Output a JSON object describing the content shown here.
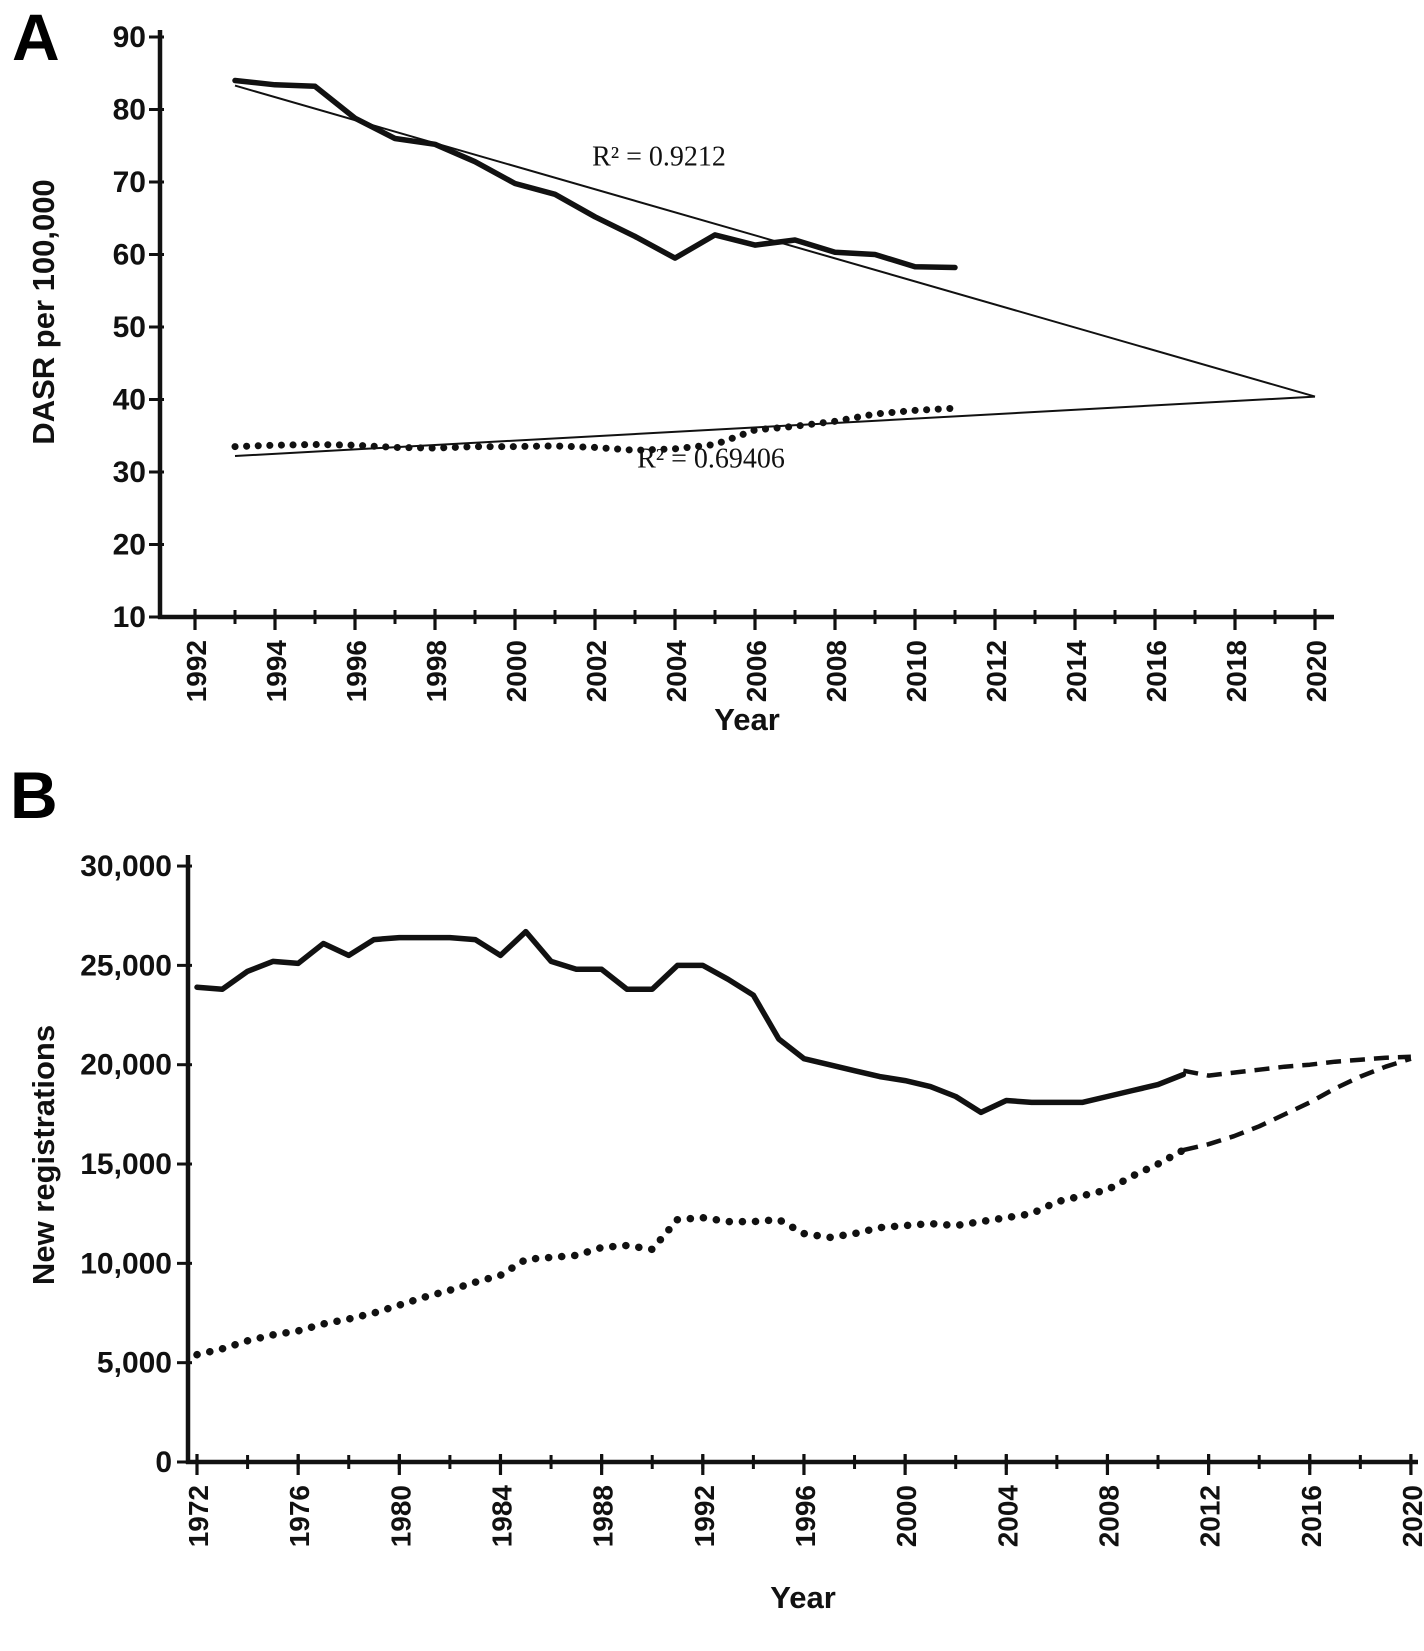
{
  "figure": {
    "background": "#ffffff",
    "ink": "#111111"
  },
  "panels": [
    {
      "letter": "A"
    },
    {
      "letter": "B"
    }
  ],
  "chart_data": [
    {
      "panel": "A",
      "type": "line",
      "title": "",
      "xlabel": "Year",
      "ylabel": "DASR per 100,000",
      "xlim": [
        1992,
        2020
      ],
      "ylim": [
        10,
        90
      ],
      "grid": false,
      "legend": null,
      "xticks": {
        "labeled": [
          1992,
          1994,
          1996,
          1998,
          2000,
          2002,
          2004,
          2006,
          2008,
          2010,
          2012,
          2014,
          2016,
          2018,
          2020
        ],
        "minor_step": 1
      },
      "yticks": {
        "values": [
          10,
          20,
          30,
          40,
          50,
          60,
          70,
          80,
          90
        ],
        "labels": [
          "10",
          "20",
          "30",
          "40",
          "50",
          "60",
          "70",
          "80",
          "90"
        ]
      },
      "series": [
        {
          "name": "solid-series-observed",
          "style": "solid-thick",
          "x_first": 1993,
          "x_step": 1,
          "y": [
            84,
            83.4,
            83.2,
            78.8,
            76.0,
            75.2,
            72.8,
            69.8,
            68.3,
            65.2,
            62.5,
            59.5,
            62.7,
            61.3,
            62.0,
            60.3,
            60.0,
            58.3,
            58.2
          ]
        },
        {
          "name": "solid-series-trendline",
          "style": "solid-thin",
          "x": [
            1993,
            2020
          ],
          "y": [
            83.3,
            40.4
          ]
        },
        {
          "name": "dotted-series-observed",
          "style": "dotted",
          "x_first": 1993,
          "x_step": 1,
          "y": [
            33.5,
            33.7,
            33.8,
            33.7,
            33.4,
            33.3,
            33.5,
            33.5,
            33.6,
            33.4,
            33.0,
            33.2,
            33.8,
            35.8,
            36.3,
            37.0,
            38.0,
            38.5,
            38.8
          ]
        },
        {
          "name": "dotted-series-trendline",
          "style": "solid-thin",
          "x": [
            1993,
            2020
          ],
          "y": [
            32.2,
            40.4
          ]
        }
      ],
      "annotations": [
        {
          "text": "R² = 0.9212",
          "x": 2003.6,
          "y": 72.3
        },
        {
          "text": "R² = 0.69406",
          "x": 2004.9,
          "y": 30.6
        }
      ]
    },
    {
      "panel": "B",
      "type": "line",
      "title": "",
      "xlabel": "Year",
      "ylabel": "New registrations",
      "xlim": [
        1972,
        2020
      ],
      "ylim": [
        0,
        30000
      ],
      "grid": false,
      "legend": null,
      "xticks": {
        "labeled": [
          1972,
          1976,
          1980,
          1984,
          1988,
          1992,
          1996,
          2000,
          2004,
          2008,
          2012,
          2016,
          2020
        ],
        "minor_step": 2
      },
      "yticks": {
        "values": [
          0,
          5000,
          10000,
          15000,
          20000,
          25000,
          30000
        ],
        "labels": [
          "0",
          "5,000",
          "10,000",
          "15,000",
          "20,000",
          "25,000",
          "30,000"
        ]
      },
      "series": [
        {
          "name": "solid-series-observed",
          "style": "solid-thick",
          "x_first": 1972,
          "x_step": 1,
          "y": [
            23900,
            23800,
            24700,
            25200,
            25100,
            26100,
            25500,
            26300,
            26400,
            26400,
            26400,
            26300,
            25500,
            26700,
            25200,
            24800,
            24800,
            23800,
            23800,
            25000,
            25000,
            24300,
            23500,
            21300,
            20300,
            20000,
            19700,
            19400,
            19200,
            18900,
            18400,
            17600,
            18200,
            18100,
            18100,
            18100,
            18400,
            18700,
            19000,
            19500
          ]
        },
        {
          "name": "solid-series-projection-dashed",
          "style": "dashed",
          "x_first": 2011,
          "x_step": 1,
          "y": [
            19700,
            19450,
            19600,
            19750,
            19900,
            20000,
            20150,
            20250,
            20350,
            20400
          ]
        },
        {
          "name": "dotted-series-observed",
          "style": "dotted",
          "x_first": 1972,
          "x_step": 1,
          "y": [
            5400,
            5700,
            6100,
            6400,
            6600,
            6950,
            7200,
            7500,
            7900,
            8300,
            8650,
            9050,
            9400,
            10200,
            10300,
            10400,
            10800,
            10900,
            10700,
            12200,
            12300,
            12100,
            12100,
            12200,
            11500,
            11300,
            11500,
            11800,
            11900,
            12000,
            11900,
            12100,
            12300,
            12500,
            13100,
            13400,
            13700,
            14400,
            15000,
            15700
          ]
        },
        {
          "name": "dotted-series-projection-dashed",
          "style": "dashed",
          "x_first": 2011,
          "x_step": 1,
          "y": [
            15700,
            16000,
            16400,
            16900,
            17500,
            18100,
            18800,
            19400,
            19900,
            20300
          ]
        }
      ],
      "annotations": []
    }
  ]
}
